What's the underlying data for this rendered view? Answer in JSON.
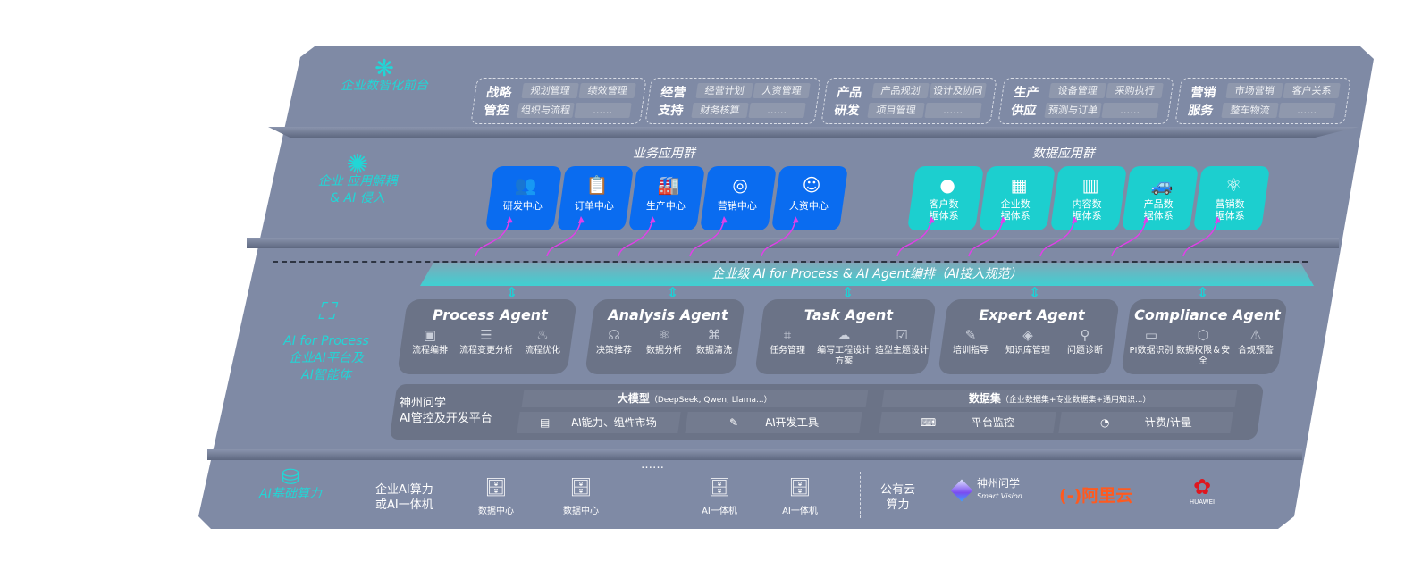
{
  "colors": {
    "background": "#7f8aa5",
    "business_card": "#0a6cf0",
    "data_card": "#1ccfcf",
    "accent_label": "#22d6d6",
    "connector": "#e040e8"
  },
  "layers": [
    {
      "label": "企业数智化前台",
      "icon": "brain-icon"
    },
    {
      "label_lines": [
        "企业 应用解耦",
        "& AI 侵入"
      ],
      "icon": "molecule-icon"
    },
    {
      "label_lines": [
        "AI for Process",
        "企业AI平台及",
        "AI智能体"
      ],
      "icon": "face-scan-icon"
    },
    {
      "label": "AI基础算力",
      "icon": "database-icon"
    }
  ],
  "front_groups": [
    {
      "title": "战略管控",
      "items": [
        "规划管理",
        "绩效管理",
        "组织与流程",
        "……"
      ]
    },
    {
      "title": "经营支持",
      "items": [
        "经营计划",
        "人资管理",
        "财务核算",
        "……"
      ]
    },
    {
      "title": "产品研发",
      "items": [
        "产品规划",
        "设计及协同",
        "项目管理",
        "……"
      ]
    },
    {
      "title": "生产供应",
      "items": [
        "设备管理",
        "采购执行",
        "预测与订单",
        "……"
      ]
    },
    {
      "title": "营销服务",
      "items": [
        "市场营销",
        "客户关系",
        "整车物流",
        "……"
      ]
    }
  ],
  "business_apps": {
    "title": "业务应用群",
    "items": [
      {
        "label": "研发中心",
        "icon": "team-icon"
      },
      {
        "label": "订单中心",
        "icon": "clipboard-icon"
      },
      {
        "label": "生产中心",
        "icon": "factory-icon"
      },
      {
        "label": "营销中心",
        "icon": "target-icon"
      },
      {
        "label": "人资中心",
        "icon": "person-icon"
      }
    ]
  },
  "data_apps": {
    "title": "数据应用群",
    "items": [
      {
        "label": "客户数据体系",
        "icon": "user-icon"
      },
      {
        "label": "企业数据体系",
        "icon": "building-icon"
      },
      {
        "label": "内容数据体系",
        "icon": "books-icon"
      },
      {
        "label": "产品数据体系",
        "icon": "car-icon"
      },
      {
        "label": "营销数据体系",
        "icon": "atom-icon"
      }
    ]
  },
  "orchestration_band": "企业级 AI for Process & AI Agent编排（AI接入规范）",
  "agents": [
    {
      "name": "Process Agent",
      "items": [
        {
          "label": "流程编排",
          "icon": "workflow-icon"
        },
        {
          "label": "流程变更分析",
          "icon": "list-icon"
        },
        {
          "label": "流程优化",
          "icon": "optimize-icon"
        }
      ]
    },
    {
      "name": "Analysis Agent",
      "items": [
        {
          "label": "决策推荐",
          "icon": "head-icon"
        },
        {
          "label": "数据分析",
          "icon": "atom-icon"
        },
        {
          "label": "数据清洗",
          "icon": "clean-icon"
        }
      ]
    },
    {
      "name": "Task Agent",
      "items": [
        {
          "label": "任务管理",
          "icon": "network-icon"
        },
        {
          "label": "编写工程设计方案",
          "icon": "cloud-icon"
        },
        {
          "label": "造型主题设计",
          "icon": "checklist-icon"
        }
      ]
    },
    {
      "name": "Expert Agent",
      "items": [
        {
          "label": "培训指导",
          "icon": "pencil-icon"
        },
        {
          "label": "知识库管理",
          "icon": "layers-icon"
        },
        {
          "label": "问题诊断",
          "icon": "diagnose-icon"
        }
      ]
    },
    {
      "name": "Compliance Agent",
      "items": [
        {
          "label": "PI数据识别",
          "icon": "id-card-icon"
        },
        {
          "label": "数据权限＆安全",
          "icon": "shield-icon"
        },
        {
          "label": "合规预警",
          "icon": "alert-icon"
        }
      ]
    }
  ],
  "platform": {
    "title_lines": [
      "神州问学",
      "AI管控及开发平台"
    ],
    "model": {
      "label": "大模型",
      "detail": "（DeepSeek, Qwen, Llama...）"
    },
    "dataset": {
      "label": "数据集",
      "detail": "（企业数据集+专业数据集+通用知识...）"
    },
    "tools": [
      {
        "label": "AI能力、组件市场",
        "icon": "market-icon"
      },
      {
        "label": "AI开发工具",
        "icon": "dev-tool-icon"
      },
      {
        "label": "平台监控",
        "icon": "monitor-icon"
      },
      {
        "label": "计费/计量",
        "icon": "gauge-icon"
      }
    ]
  },
  "compute": {
    "title_lines": [
      "企业AI算力",
      "或AI一体机"
    ],
    "servers": [
      {
        "label": "数据中心"
      },
      {
        "label": "数据中心"
      },
      {
        "label": "……"
      },
      {
        "label": "AI一体机"
      },
      {
        "label": "AI一体机"
      }
    ],
    "cloud_title_lines": [
      "公有云",
      "算力"
    ],
    "providers": [
      {
        "name": "神州问学",
        "sub": "Smart Vision",
        "color": "#ffffff"
      },
      {
        "name": "阿里云",
        "logo": "(-)",
        "color": "#ff5a1f"
      },
      {
        "name": "HUAWEI",
        "color": "#e0161e"
      }
    ]
  }
}
